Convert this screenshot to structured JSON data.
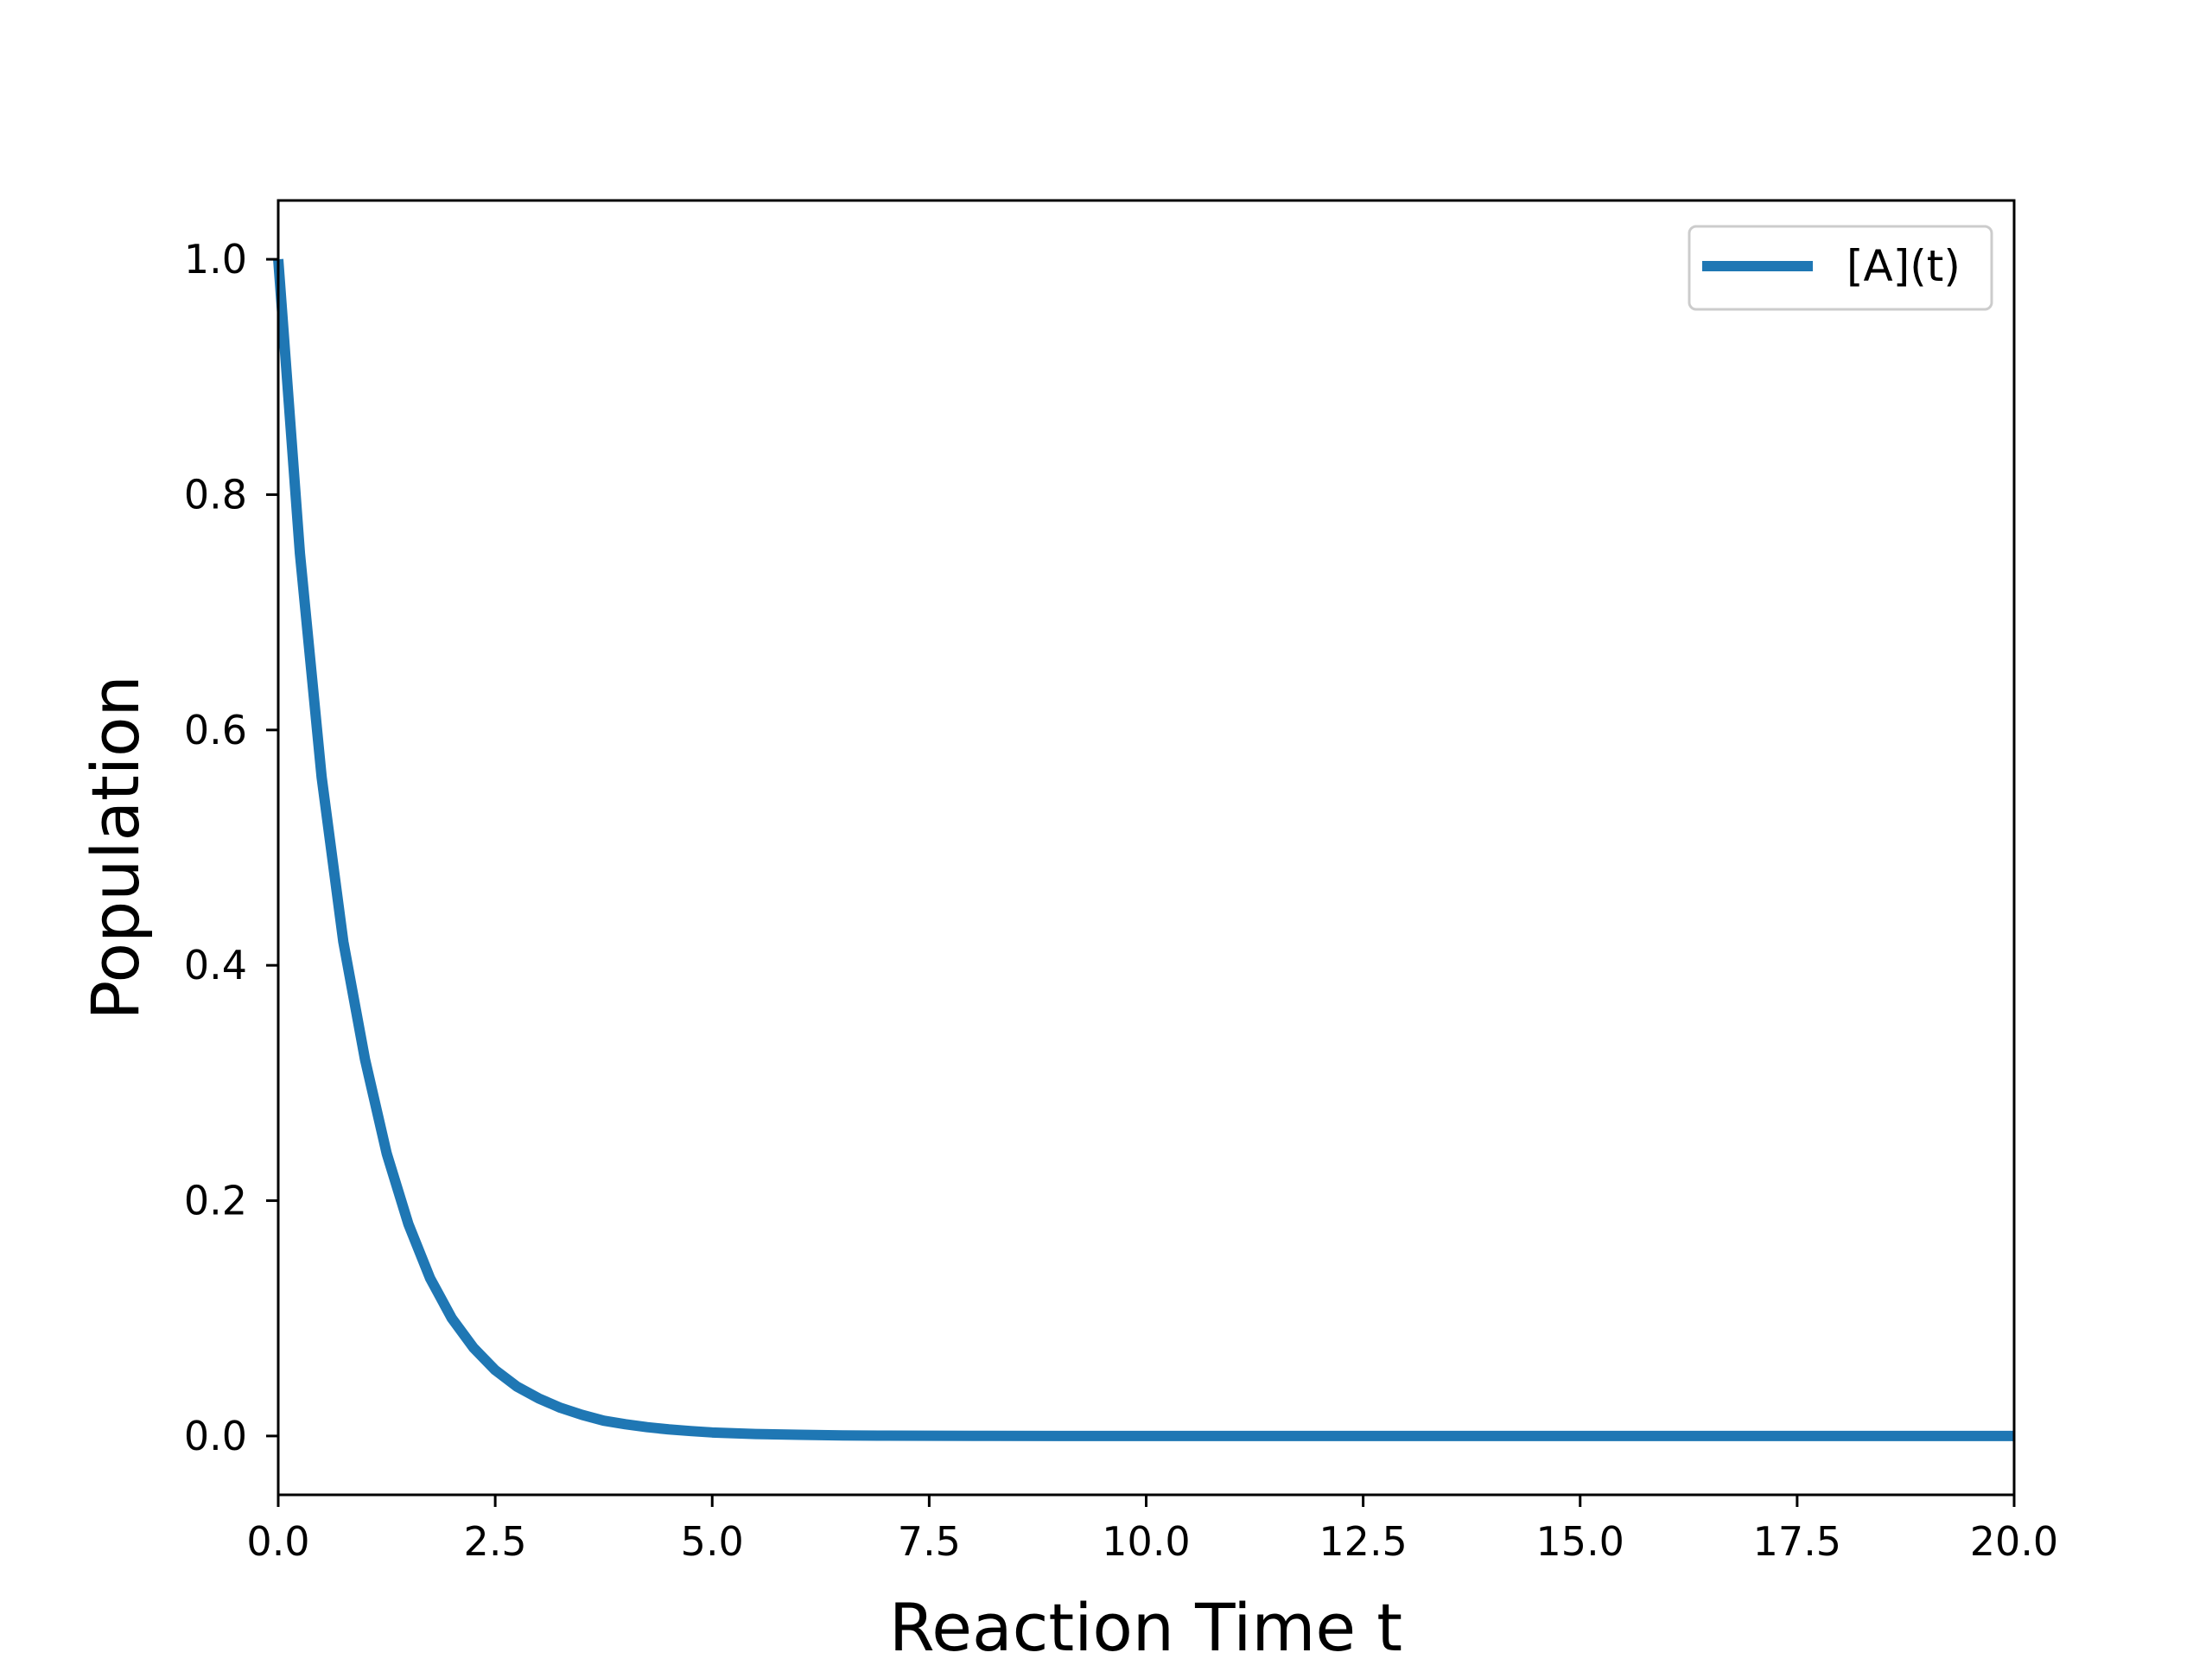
{
  "chart_data": {
    "type": "line",
    "title": "",
    "xlabel": "Reaction Time t",
    "ylabel": "Population",
    "xlim": [
      0,
      20
    ],
    "ylim": [
      -0.05,
      1.05
    ],
    "xticks": [
      0,
      2.5,
      5,
      7.5,
      10,
      12.5,
      15,
      17.5,
      20
    ],
    "xtick_labels": [
      "0.0",
      "2.5",
      "5.0",
      "7.5",
      "10.0",
      "12.5",
      "15.0",
      "17.5",
      "20.0"
    ],
    "yticks": [
      0,
      0.2,
      0.4,
      0.6,
      0.8,
      1.0
    ],
    "ytick_labels": [
      "0.0",
      "0.2",
      "0.4",
      "0.6",
      "0.8",
      "1.0"
    ],
    "grid": false,
    "legend_position": "top-right",
    "series": [
      {
        "name": "[A](t)",
        "color": "#1f77b4",
        "x": [
          0,
          0.25,
          0.5,
          0.75,
          1.0,
          1.25,
          1.5,
          1.75,
          2.0,
          2.25,
          2.5,
          2.75,
          3.0,
          3.25,
          3.5,
          3.75,
          4.0,
          4.25,
          4.5,
          4.75,
          5.0,
          5.5,
          6.0,
          6.5,
          7.0,
          7.5,
          8.0,
          9.0,
          10.0,
          11.0,
          12.0,
          13.0,
          14.0,
          15.0,
          16.0,
          17.0,
          18.0,
          19.0,
          20.0
        ],
        "y": [
          1.0,
          0.75,
          0.56,
          0.42,
          0.32,
          0.24,
          0.18,
          0.134,
          0.1,
          0.075,
          0.056,
          0.042,
          0.032,
          0.024,
          0.018,
          0.013,
          0.01,
          0.0075,
          0.0056,
          0.0042,
          0.003,
          0.0017,
          0.001,
          0.0005,
          0.0003,
          0.0002,
          0.0001,
          0.0,
          0.0,
          0.0,
          0.0,
          0.0,
          0.0,
          0.0,
          0.0,
          0.0,
          0.0,
          0.0,
          0.0
        ]
      }
    ]
  }
}
